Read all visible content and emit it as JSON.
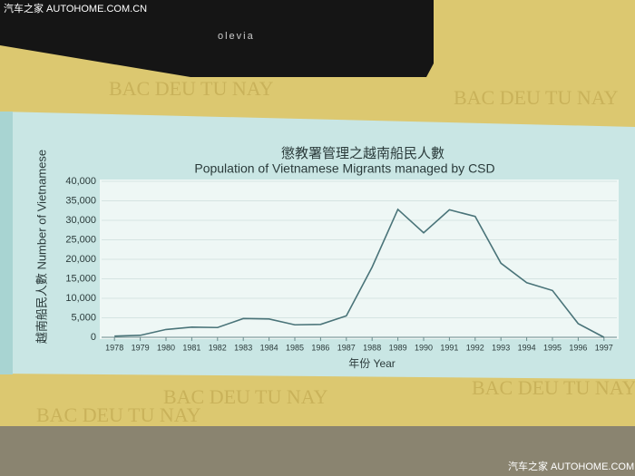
{
  "watermark": "汽车之家 AUTOHOME.COM.CN",
  "tv_brand": "olevia",
  "wall_text": "BAC DEU TU NAY",
  "chart_data": {
    "type": "line",
    "title": "懲教署管理之越南船民人數",
    "subtitle": "Population of Vietnamese Migrants managed by CSD",
    "y_label": "越南船民人數 Number of Vietnamese",
    "x_label": "年份 Year",
    "categories": [
      "1978",
      "1979",
      "1980",
      "1981",
      "1982",
      "1983",
      "1984",
      "1985",
      "1986",
      "1987",
      "1988",
      "1989",
      "1990",
      "1991",
      "1992",
      "1993",
      "1994",
      "1995",
      "1996",
      "1997"
    ],
    "series": [
      {
        "name": "Vietnamese Migrants",
        "color": "#4a7479",
        "values": [
          300,
          500,
          2000,
          2600,
          2500,
          4800,
          4700,
          3200,
          3300,
          5500,
          18000,
          32800,
          26800,
          32700,
          31000,
          19000,
          14000,
          12000,
          3500,
          0
        ]
      }
    ],
    "ylim": [
      0,
      40000
    ],
    "yticks": [
      0,
      {
        "value": 5000,
        "label": "5,000"
      },
      {
        "value": 10000,
        "label": "10,000"
      },
      {
        "value": 15000,
        "label": "15,000"
      },
      {
        "value": 20000,
        "label": "20,000"
      },
      {
        "value": 25000,
        "label": "25,000"
      },
      {
        "value": 30000,
        "label": "30,000"
      },
      {
        "value": 35000,
        "label": "35,000"
      },
      {
        "value": 40000,
        "label": "40,000"
      }
    ],
    "grid": true
  }
}
